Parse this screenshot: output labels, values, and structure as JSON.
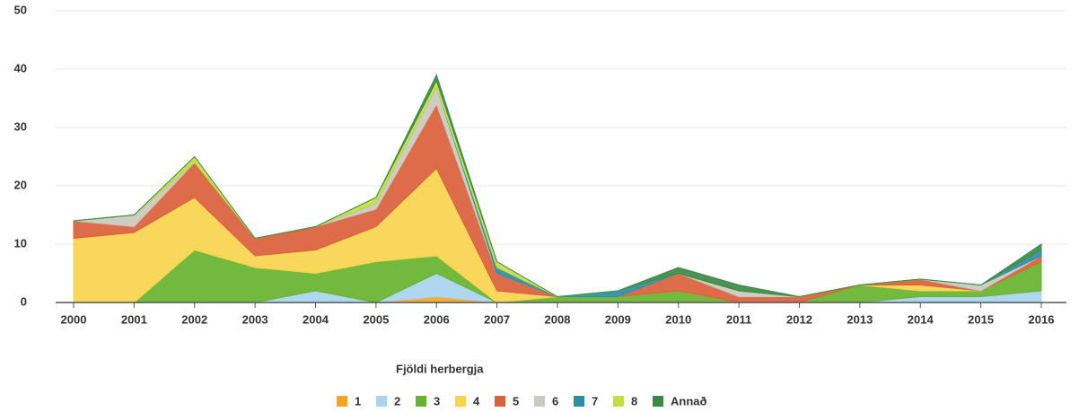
{
  "chart_data": {
    "type": "stacked_area",
    "legend_title": "Fjöldi herbergja",
    "categories": [
      "2000",
      "2001",
      "2002",
      "2003",
      "2004",
      "2005",
      "2006",
      "2007",
      "2008",
      "2009",
      "2010",
      "2011",
      "2012",
      "2013",
      "2014",
      "2015",
      "2016"
    ],
    "ylim": [
      0,
      50
    ],
    "yticks": [
      0,
      10,
      20,
      30,
      40,
      50
    ],
    "grid": true,
    "legend": "bottom",
    "series": [
      {
        "name": "1",
        "color": "#f5a623",
        "values": [
          0,
          0,
          0,
          0,
          0,
          0,
          1,
          0,
          0,
          0,
          0,
          0,
          0,
          0,
          0,
          0,
          0
        ]
      },
      {
        "name": "2",
        "color": "#a8d4f0",
        "values": [
          0,
          0,
          0,
          0,
          2,
          0,
          4,
          0,
          0,
          0,
          0,
          0,
          0,
          0,
          1,
          1,
          2
        ]
      },
      {
        "name": "3",
        "color": "#66b32e",
        "values": [
          0,
          0,
          9,
          6,
          3,
          7,
          3,
          0,
          1,
          1,
          2,
          0,
          0,
          3,
          1,
          1,
          5
        ]
      },
      {
        "name": "4",
        "color": "#f7d44c",
        "values": [
          11,
          12,
          9,
          2,
          4,
          6,
          15,
          2,
          0,
          0,
          0,
          0,
          0,
          0,
          1,
          0,
          0
        ]
      },
      {
        "name": "5",
        "color": "#d9603b",
        "values": [
          3,
          1,
          6,
          3,
          4,
          3,
          11,
          3,
          0,
          0,
          3,
          1,
          1,
          0,
          1,
          0,
          1
        ]
      },
      {
        "name": "6",
        "color": "#c9c9bf",
        "values": [
          0,
          2,
          0,
          0,
          0,
          1,
          3,
          0,
          0,
          0,
          0,
          1,
          0,
          0,
          0,
          1,
          0
        ]
      },
      {
        "name": "7",
        "color": "#2a8ea6",
        "values": [
          0,
          0,
          0,
          0,
          0,
          0,
          0,
          1,
          0,
          1,
          0,
          0,
          0,
          0,
          0,
          0,
          1
        ]
      },
      {
        "name": "8",
        "color": "#c5dd40",
        "values": [
          0,
          0,
          1,
          0,
          0,
          1,
          1,
          1,
          0,
          0,
          0,
          0,
          0,
          0,
          0,
          0,
          0
        ]
      },
      {
        "name": "Annað",
        "color": "#3a8a46",
        "values": [
          0,
          0,
          0,
          0,
          0,
          0,
          1,
          0,
          0,
          0,
          1,
          1,
          0,
          0,
          0,
          0,
          1
        ]
      }
    ]
  }
}
